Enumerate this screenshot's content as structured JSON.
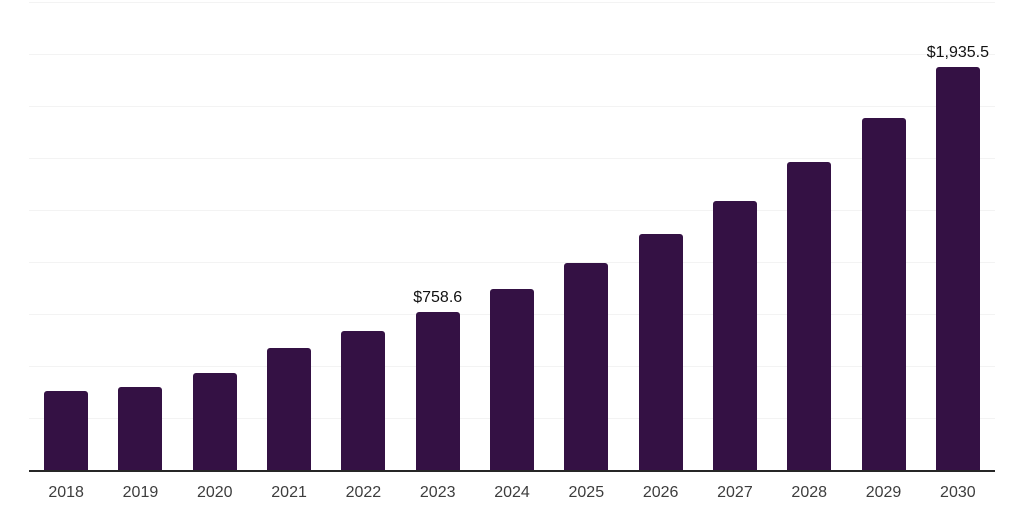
{
  "chart_data": {
    "type": "bar",
    "title": "",
    "xlabel": "",
    "ylabel": "",
    "categories": [
      "2018",
      "2019",
      "2020",
      "2021",
      "2022",
      "2023",
      "2024",
      "2025",
      "2026",
      "2027",
      "2028",
      "2029",
      "2030"
    ],
    "values": [
      380,
      401,
      468,
      585,
      668,
      758.6,
      869,
      994,
      1135,
      1295,
      1482,
      1694,
      1935.5
    ],
    "data_labels": [
      null,
      null,
      null,
      null,
      null,
      "$758.6",
      null,
      null,
      null,
      null,
      null,
      null,
      "$1,935.5"
    ],
    "ylim": [
      0,
      2250
    ],
    "grid_step": 250,
    "grid": true,
    "legend": "none",
    "y_axis_labels_visible": false,
    "colors": {
      "bar": "#341144",
      "gridline": "#f3f3f3",
      "axis_line": "#262626",
      "tick_label": "#3d3d3d",
      "data_label": "#121212",
      "background": "#ffffff"
    }
  }
}
